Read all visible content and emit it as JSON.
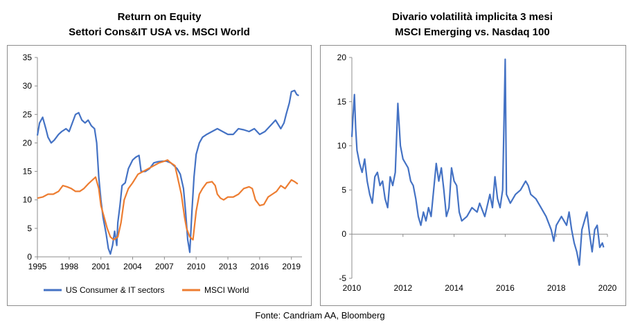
{
  "source": "Fonte: Candriam AA, Bloomberg",
  "chart_data": [
    {
      "type": "line",
      "title": "Return on Equity",
      "subtitle": "Settori Cons&IT USA vs. MSCI World",
      "xlabel": "",
      "ylabel": "",
      "xlim": [
        1995,
        2020
      ],
      "ylim": [
        0,
        35
      ],
      "xticks": [
        1995,
        1998,
        2001,
        2004,
        2007,
        2010,
        2013,
        2016,
        2019
      ],
      "yticks": [
        0,
        5,
        10,
        15,
        20,
        25,
        30,
        35
      ],
      "grid": false,
      "legend": "bottom",
      "series": [
        {
          "name": "US Consumer & IT sectors",
          "color": "#4472C4",
          "points": [
            [
              1995.0,
              21.3
            ],
            [
              1995.2,
              23.5
            ],
            [
              1995.5,
              24.5
            ],
            [
              1995.8,
              22.5
            ],
            [
              1996.0,
              21.0
            ],
            [
              1996.3,
              20.0
            ],
            [
              1996.6,
              20.5
            ],
            [
              1997.0,
              21.5
            ],
            [
              1997.3,
              22.0
            ],
            [
              1997.7,
              22.5
            ],
            [
              1998.0,
              22.0
            ],
            [
              1998.3,
              23.5
            ],
            [
              1998.6,
              25.0
            ],
            [
              1998.9,
              25.3
            ],
            [
              1999.2,
              24.0
            ],
            [
              1999.5,
              23.5
            ],
            [
              1999.8,
              24.0
            ],
            [
              2000.1,
              23.0
            ],
            [
              2000.4,
              22.5
            ],
            [
              2000.6,
              20.0
            ],
            [
              2000.8,
              14.0
            ],
            [
              2001.0,
              10.0
            ],
            [
              2001.2,
              7.0
            ],
            [
              2001.5,
              4.0
            ],
            [
              2001.7,
              1.5
            ],
            [
              2001.9,
              0.5
            ],
            [
              2002.1,
              2.0
            ],
            [
              2002.3,
              4.5
            ],
            [
              2002.5,
              2.0
            ],
            [
              2002.6,
              6.0
            ],
            [
              2002.8,
              9.0
            ],
            [
              2003.0,
              12.5
            ],
            [
              2003.3,
              13.0
            ],
            [
              2003.6,
              15.5
            ],
            [
              2004.0,
              17.0
            ],
            [
              2004.3,
              17.5
            ],
            [
              2004.6,
              17.8
            ],
            [
              2004.8,
              15.0
            ],
            [
              2005.2,
              15.0
            ],
            [
              2005.6,
              15.5
            ],
            [
              2006.0,
              16.5
            ],
            [
              2006.4,
              16.7
            ],
            [
              2006.8,
              16.8
            ],
            [
              2007.2,
              16.8
            ],
            [
              2007.6,
              16.5
            ],
            [
              2007.9,
              16.0
            ],
            [
              2008.2,
              15.5
            ],
            [
              2008.5,
              14.5
            ],
            [
              2008.8,
              12.0
            ],
            [
              2009.0,
              8.0
            ],
            [
              2009.2,
              3.0
            ],
            [
              2009.4,
              0.8
            ],
            [
              2009.6,
              8.0
            ],
            [
              2009.8,
              14.0
            ],
            [
              2010.0,
              18.0
            ],
            [
              2010.3,
              20.0
            ],
            [
              2010.6,
              21.0
            ],
            [
              2011.0,
              21.5
            ],
            [
              2011.5,
              22.0
            ],
            [
              2012.0,
              22.5
            ],
            [
              2012.5,
              22.0
            ],
            [
              2013.0,
              21.5
            ],
            [
              2013.5,
              21.5
            ],
            [
              2014.0,
              22.5
            ],
            [
              2014.5,
              22.3
            ],
            [
              2015.0,
              22.0
            ],
            [
              2015.5,
              22.5
            ],
            [
              2016.0,
              21.5
            ],
            [
              2016.5,
              22.0
            ],
            [
              2017.0,
              23.0
            ],
            [
              2017.5,
              24.0
            ],
            [
              2018.0,
              22.5
            ],
            [
              2018.3,
              23.5
            ],
            [
              2018.5,
              25.0
            ],
            [
              2018.8,
              27.0
            ],
            [
              2019.0,
              29.0
            ],
            [
              2019.3,
              29.2
            ],
            [
              2019.5,
              28.5
            ],
            [
              2019.7,
              28.3
            ]
          ]
        },
        {
          "name": "MSCI World",
          "color": "#ED7D31",
          "points": [
            [
              1995.0,
              10.3
            ],
            [
              1995.5,
              10.5
            ],
            [
              1996.0,
              11.0
            ],
            [
              1996.5,
              11.0
            ],
            [
              1997.0,
              11.5
            ],
            [
              1997.4,
              12.5
            ],
            [
              1997.8,
              12.3
            ],
            [
              1998.2,
              12.0
            ],
            [
              1998.6,
              11.5
            ],
            [
              1999.0,
              11.5
            ],
            [
              1999.4,
              12.0
            ],
            [
              1999.8,
              12.8
            ],
            [
              2000.2,
              13.5
            ],
            [
              2000.5,
              14.0
            ],
            [
              2000.8,
              12.0
            ],
            [
              2001.0,
              9.0
            ],
            [
              2001.3,
              7.0
            ],
            [
              2001.6,
              5.0
            ],
            [
              2001.9,
              3.5
            ],
            [
              2002.2,
              3.0
            ],
            [
              2002.6,
              3.5
            ],
            [
              2002.9,
              6.0
            ],
            [
              2003.2,
              10.0
            ],
            [
              2003.6,
              12.0
            ],
            [
              2004.0,
              13.0
            ],
            [
              2004.5,
              14.5
            ],
            [
              2005.0,
              15.0
            ],
            [
              2005.5,
              15.5
            ],
            [
              2006.0,
              16.0
            ],
            [
              2006.5,
              16.5
            ],
            [
              2007.0,
              16.8
            ],
            [
              2007.3,
              17.0
            ],
            [
              2007.6,
              16.5
            ],
            [
              2008.0,
              16.0
            ],
            [
              2008.3,
              13.5
            ],
            [
              2008.6,
              11.0
            ],
            [
              2008.9,
              7.0
            ],
            [
              2009.1,
              5.0
            ],
            [
              2009.4,
              3.5
            ],
            [
              2009.7,
              3.0
            ],
            [
              2010.0,
              8.0
            ],
            [
              2010.3,
              11.0
            ],
            [
              2010.6,
              12.0
            ],
            [
              2011.0,
              13.0
            ],
            [
              2011.5,
              13.2
            ],
            [
              2011.8,
              12.5
            ],
            [
              2012.0,
              11.0
            ],
            [
              2012.3,
              10.3
            ],
            [
              2012.6,
              10.0
            ],
            [
              2013.0,
              10.5
            ],
            [
              2013.5,
              10.5
            ],
            [
              2014.0,
              11.0
            ],
            [
              2014.5,
              12.0
            ],
            [
              2015.0,
              12.3
            ],
            [
              2015.3,
              12.0
            ],
            [
              2015.6,
              10.0
            ],
            [
              2016.0,
              9.0
            ],
            [
              2016.4,
              9.2
            ],
            [
              2016.8,
              10.5
            ],
            [
              2017.2,
              11.0
            ],
            [
              2017.6,
              11.5
            ],
            [
              2018.0,
              12.5
            ],
            [
              2018.4,
              12.0
            ],
            [
              2018.8,
              13.0
            ],
            [
              2019.0,
              13.5
            ],
            [
              2019.3,
              13.2
            ],
            [
              2019.6,
              12.8
            ]
          ]
        }
      ]
    },
    {
      "type": "line",
      "title": "Divario volatilità implicita 3 mesi",
      "subtitle": "MSCI Emerging vs. Nasdaq 100",
      "xlabel": "",
      "ylabel": "",
      "xlim": [
        2010,
        2020
      ],
      "ylim": [
        -5,
        20
      ],
      "xticks": [
        2010,
        2012,
        2014,
        2016,
        2018,
        2020
      ],
      "yticks": [
        -5,
        0,
        5,
        10,
        15,
        20
      ],
      "grid": false,
      "legend": "none",
      "series": [
        {
          "color": "#4472C4",
          "points": [
            [
              2010.0,
              11.0
            ],
            [
              2010.05,
              13.5
            ],
            [
              2010.1,
              15.8
            ],
            [
              2010.15,
              12.0
            ],
            [
              2010.2,
              9.5
            ],
            [
              2010.3,
              8.0
            ],
            [
              2010.4,
              7.0
            ],
            [
              2010.5,
              8.5
            ],
            [
              2010.6,
              6.0
            ],
            [
              2010.7,
              4.5
            ],
            [
              2010.8,
              3.5
            ],
            [
              2010.9,
              6.5
            ],
            [
              2011.0,
              7.0
            ],
            [
              2011.1,
              5.5
            ],
            [
              2011.2,
              6.0
            ],
            [
              2011.3,
              4.0
            ],
            [
              2011.4,
              3.0
            ],
            [
              2011.5,
              6.5
            ],
            [
              2011.6,
              5.5
            ],
            [
              2011.7,
              7.0
            ],
            [
              2011.8,
              14.8
            ],
            [
              2011.9,
              10.0
            ],
            [
              2012.0,
              8.5
            ],
            [
              2012.2,
              7.5
            ],
            [
              2012.3,
              6.0
            ],
            [
              2012.4,
              5.5
            ],
            [
              2012.5,
              4.0
            ],
            [
              2012.6,
              2.0
            ],
            [
              2012.7,
              1.0
            ],
            [
              2012.8,
              2.5
            ],
            [
              2012.9,
              1.5
            ],
            [
              2013.0,
              3.0
            ],
            [
              2013.1,
              2.0
            ],
            [
              2013.2,
              5.0
            ],
            [
              2013.3,
              8.0
            ],
            [
              2013.4,
              6.0
            ],
            [
              2013.5,
              7.5
            ],
            [
              2013.6,
              5.0
            ],
            [
              2013.7,
              2.0
            ],
            [
              2013.8,
              3.0
            ],
            [
              2013.9,
              7.5
            ],
            [
              2014.0,
              6.0
            ],
            [
              2014.1,
              5.5
            ],
            [
              2014.2,
              2.5
            ],
            [
              2014.3,
              1.5
            ],
            [
              2014.5,
              2.0
            ],
            [
              2014.7,
              3.0
            ],
            [
              2014.9,
              2.5
            ],
            [
              2015.0,
              3.5
            ],
            [
              2015.2,
              2.0
            ],
            [
              2015.4,
              4.5
            ],
            [
              2015.5,
              3.0
            ],
            [
              2015.6,
              6.5
            ],
            [
              2015.7,
              4.0
            ],
            [
              2015.8,
              3.0
            ],
            [
              2015.9,
              5.0
            ],
            [
              2016.0,
              19.8
            ],
            [
              2016.05,
              4.5
            ],
            [
              2016.2,
              3.5
            ],
            [
              2016.4,
              4.5
            ],
            [
              2016.6,
              5.0
            ],
            [
              2016.8,
              6.0
            ],
            [
              2016.9,
              5.5
            ],
            [
              2017.0,
              4.5
            ],
            [
              2017.2,
              4.0
            ],
            [
              2017.4,
              3.0
            ],
            [
              2017.6,
              2.0
            ],
            [
              2017.8,
              0.5
            ],
            [
              2017.9,
              -0.8
            ],
            [
              2018.0,
              1.0
            ],
            [
              2018.2,
              2.0
            ],
            [
              2018.4,
              1.0
            ],
            [
              2018.5,
              2.5
            ],
            [
              2018.6,
              0.5
            ],
            [
              2018.7,
              -1.0
            ],
            [
              2018.8,
              -2.0
            ],
            [
              2018.9,
              -3.5
            ],
            [
              2019.0,
              0.5
            ],
            [
              2019.1,
              1.5
            ],
            [
              2019.2,
              2.5
            ],
            [
              2019.3,
              0.0
            ],
            [
              2019.4,
              -2.0
            ],
            [
              2019.5,
              0.5
            ],
            [
              2019.6,
              1.0
            ],
            [
              2019.7,
              -1.5
            ],
            [
              2019.8,
              -1.0
            ],
            [
              2019.85,
              -1.5
            ]
          ]
        }
      ]
    }
  ]
}
